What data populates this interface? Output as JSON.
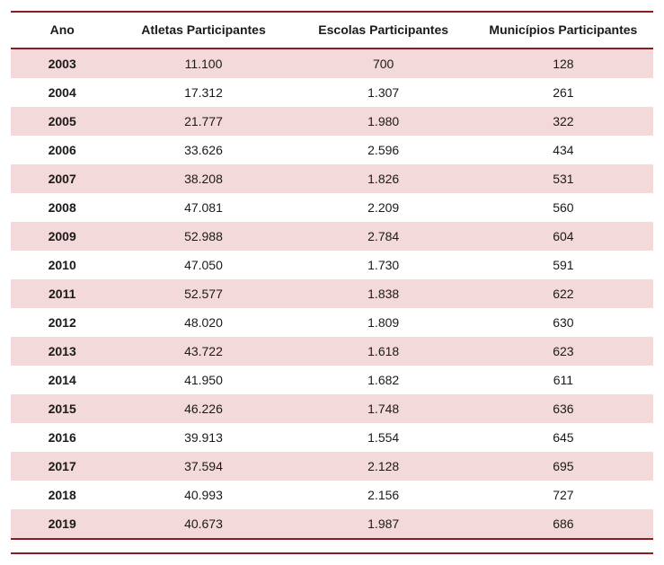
{
  "table": {
    "columns": [
      {
        "label": "Ano"
      },
      {
        "label": "Atletas Participantes"
      },
      {
        "label": "Escolas Participantes"
      },
      {
        "label": "Municípios Participantes"
      }
    ],
    "rows": [
      {
        "ano": "2003",
        "atletas": "11.100",
        "escolas": "700",
        "municipios": "128"
      },
      {
        "ano": "2004",
        "atletas": "17.312",
        "escolas": "1.307",
        "municipios": "261"
      },
      {
        "ano": "2005",
        "atletas": "21.777",
        "escolas": "1.980",
        "municipios": "322"
      },
      {
        "ano": "2006",
        "atletas": "33.626",
        "escolas": "2.596",
        "municipios": "434"
      },
      {
        "ano": "2007",
        "atletas": "38.208",
        "escolas": "1.826",
        "municipios": "531"
      },
      {
        "ano": "2008",
        "atletas": "47.081",
        "escolas": "2.209",
        "municipios": "560"
      },
      {
        "ano": "2009",
        "atletas": "52.988",
        "escolas": "2.784",
        "municipios": "604"
      },
      {
        "ano": "2010",
        "atletas": "47.050",
        "escolas": "1.730",
        "municipios": "591"
      },
      {
        "ano": "2011",
        "atletas": "52.577",
        "escolas": "1.838",
        "municipios": "622"
      },
      {
        "ano": "2012",
        "atletas": "48.020",
        "escolas": "1.809",
        "municipios": "630"
      },
      {
        "ano": "2013",
        "atletas": "43.722",
        "escolas": "1.618",
        "municipios": "623"
      },
      {
        "ano": "2014",
        "atletas": "41.950",
        "escolas": "1.682",
        "municipios": "611"
      },
      {
        "ano": "2015",
        "atletas": "46.226",
        "escolas": "1.748",
        "municipios": "636"
      },
      {
        "ano": "2016",
        "atletas": "39.913",
        "escolas": "1.554",
        "municipios": "645"
      },
      {
        "ano": "2017",
        "atletas": "37.594",
        "escolas": "2.128",
        "municipios": "695"
      },
      {
        "ano": "2018",
        "atletas": "40.993",
        "escolas": "2.156",
        "municipios": "727"
      },
      {
        "ano": "2019",
        "atletas": "40.673",
        "escolas": "1.987",
        "municipios": "686"
      }
    ],
    "styling": {
      "stripe_color_odd": "#f3d9d9",
      "stripe_color_even": "#ffffff",
      "border_color": "#8a1c24",
      "text_color": "#1a1a1a",
      "header_fontsize_pt": 10.5,
      "cell_fontsize_pt": 10.5,
      "year_bold": true,
      "alignment": "center"
    }
  }
}
